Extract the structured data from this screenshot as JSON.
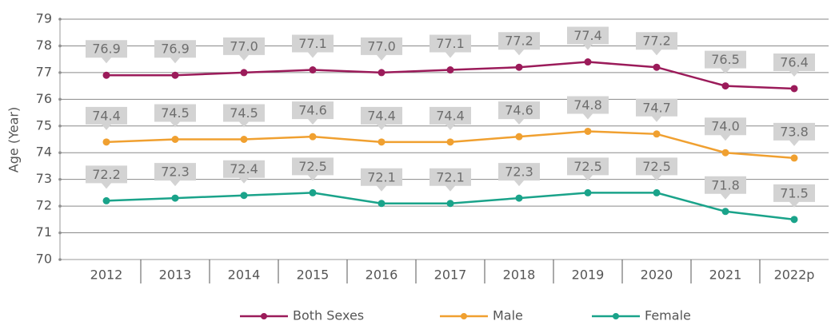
{
  "chart_data": {
    "type": "line",
    "y_label": "Age (Year)",
    "categories": [
      "2012",
      "2013",
      "2014",
      "2015",
      "2016",
      "2017",
      "2018",
      "2019",
      "2020",
      "2021",
      "2022p"
    ],
    "ylim": [
      70,
      79
    ],
    "yticks": [
      70,
      71,
      72,
      73,
      74,
      75,
      76,
      77,
      78,
      79
    ],
    "grid": true,
    "legend": "bottom",
    "series": [
      {
        "name": "Both Sexes",
        "color": "#9b1b5a",
        "values": [
          76.9,
          76.9,
          77,
          77.1,
          77,
          77.1,
          77.2,
          77.4,
          77.2,
          76.5,
          76.4
        ],
        "value_labels": [
          "76.9",
          "76.9",
          "77.0",
          "77.1",
          "77.0",
          "77.1",
          "77.2",
          "77.4",
          "77.2",
          "76.5",
          "76.4"
        ]
      },
      {
        "name": "Male",
        "color": "#f0a030",
        "values": [
          74.4,
          74.5,
          74.5,
          74.6,
          74.4,
          74.4,
          74.6,
          74.8,
          74.7,
          74,
          73.8
        ],
        "value_labels": [
          "74.4",
          "74.5",
          "74.5",
          "74.6",
          "74.4",
          "74.4",
          "74.6",
          "74.8",
          "74.7",
          "74.0",
          "73.8"
        ]
      },
      {
        "name": "Female",
        "color": "#1aa38a",
        "values": [
          72.2,
          72.3,
          72.4,
          72.5,
          72.1,
          72.1,
          72.3,
          72.5,
          72.5,
          71.8,
          71.5
        ],
        "value_labels": [
          "72.2",
          "72.3",
          "72.4",
          "72.5",
          "72.1",
          "72.1",
          "72.3",
          "72.5",
          "72.5",
          "71.8",
          "71.5"
        ]
      }
    ]
  }
}
